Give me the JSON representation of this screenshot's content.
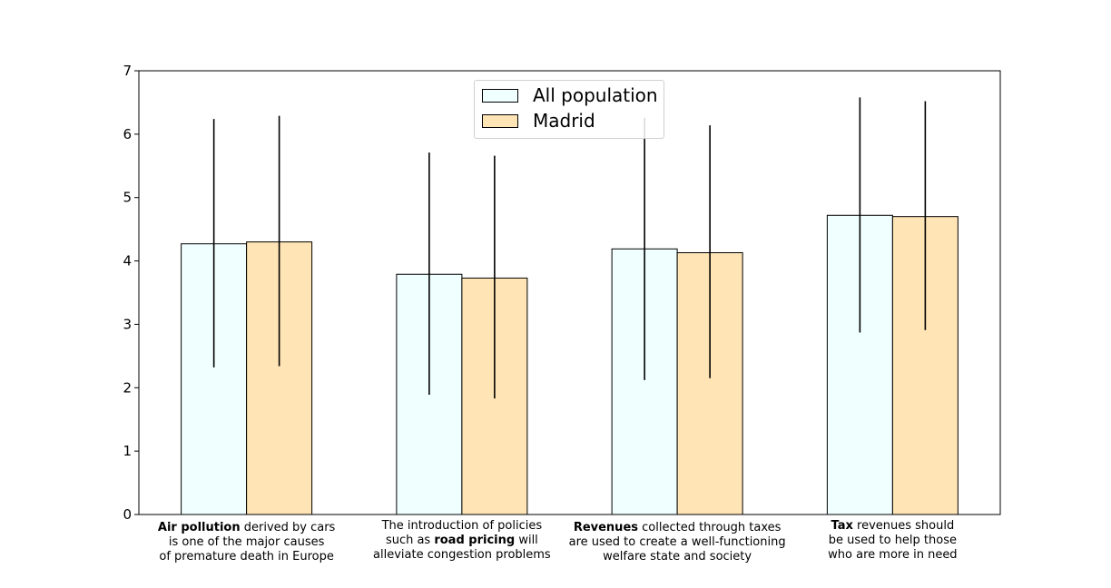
{
  "chart_data": {
    "type": "bar",
    "categories": [
      {
        "parts": [
          {
            "text": "Air pollution",
            "bold": true
          },
          {
            "text": " derived by cars\nis one of the major causes\nof premature death in Europe",
            "bold": false
          }
        ]
      },
      {
        "parts": [
          {
            "text": "The introduction of policies\nsuch as ",
            "bold": false
          },
          {
            "text": "road pricing",
            "bold": true
          },
          {
            "text": " will\nalleviate congestion problems",
            "bold": false
          }
        ]
      },
      {
        "parts": [
          {
            "text": "Revenues",
            "bold": true
          },
          {
            "text": " collected through taxes\nare used to create a well-functioning\nwelfare state and society",
            "bold": false
          }
        ]
      },
      {
        "parts": [
          {
            "text": "Tax",
            "bold": true
          },
          {
            "text": " revenues should\nbe used to help those\nwho are more in need",
            "bold": false
          }
        ]
      }
    ],
    "series": [
      {
        "name": "All population",
        "color": "#f0ffff",
        "values": [
          4.27,
          3.79,
          4.19,
          4.72
        ],
        "error_low": [
          2.32,
          1.89,
          2.12,
          2.87
        ],
        "error_high": [
          6.24,
          5.71,
          6.26,
          6.58
        ]
      },
      {
        "name": "Madrid",
        "color": "#ffe4b5",
        "values": [
          4.3,
          3.73,
          4.13,
          4.7
        ],
        "error_low": [
          2.34,
          1.83,
          2.15,
          2.91
        ],
        "error_high": [
          6.29,
          5.66,
          6.14,
          6.52
        ]
      }
    ],
    "ylim": [
      0,
      7
    ],
    "yticks": [
      "0",
      "1",
      "2",
      "3",
      "4",
      "5",
      "6",
      "7"
    ],
    "title": "",
    "xlabel": "",
    "ylabel": "",
    "legend_position": "top-center",
    "grid": false
  }
}
